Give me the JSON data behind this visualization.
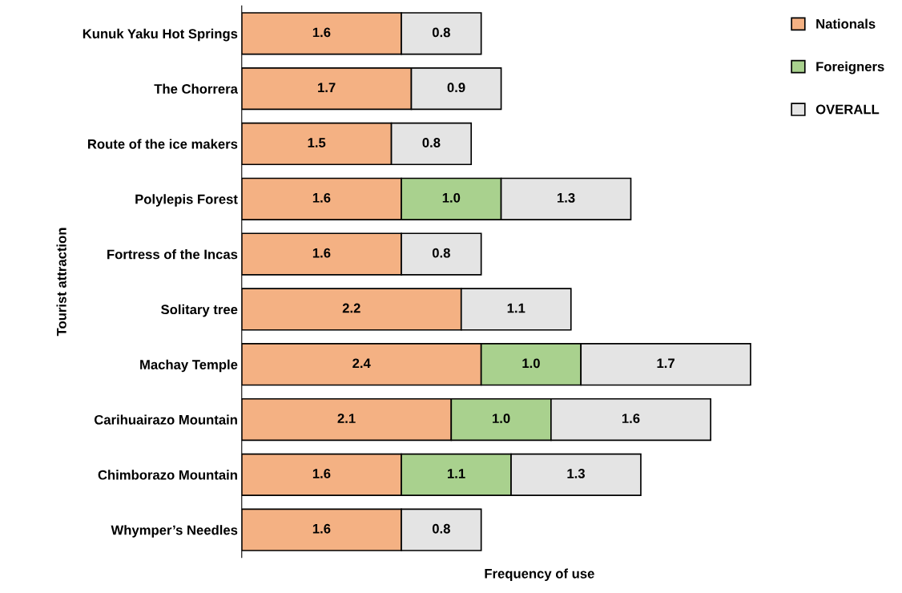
{
  "chart_data": {
    "type": "bar",
    "orientation": "horizontal",
    "stacked": true,
    "xlabel": "Frequency of use",
    "ylabel": "Tourist attraction",
    "categories": [
      "Kunuk Yaku Hot Springs",
      "The Chorrera",
      "Route of the ice makers",
      "Polylepis Forest",
      "Fortress of the Incas",
      "Solitary tree",
      "Machay Temple",
      "Carihuairazo Mountain",
      "Chimborazo Mountain",
      "Whymper’s Needles"
    ],
    "series": [
      {
        "name": "Nationals",
        "color": "#f4b183",
        "values": [
          1.6,
          1.7,
          1.5,
          1.6,
          1.6,
          2.2,
          2.4,
          2.1,
          1.6,
          1.6
        ],
        "value_labels": [
          "1.6",
          "1.7",
          "1.5",
          "1.6",
          "1.6",
          "2.2",
          "2.4",
          "2.1",
          "1.6",
          "1.6"
        ]
      },
      {
        "name": "Foreigners",
        "color": "#a9d18e",
        "values": [
          null,
          null,
          null,
          1.0,
          null,
          null,
          1.0,
          1.0,
          1.1,
          null
        ],
        "value_labels": [
          null,
          null,
          null,
          "1.0",
          null,
          null,
          "1.0",
          "1.0",
          "1.1",
          null
        ]
      },
      {
        "name": "OVERALL",
        "color": "#e4e4e4",
        "values": [
          0.8,
          0.9,
          0.8,
          1.3,
          0.8,
          1.1,
          1.7,
          1.6,
          1.3,
          0.8
        ],
        "value_labels": [
          "0.8",
          "0.9",
          "0.8",
          "1.3",
          "0.8",
          "1.1",
          "1.7",
          "1.6",
          "1.3",
          "0.8"
        ]
      }
    ],
    "legend": "top right",
    "grid": false,
    "tick_labels": "y"
  }
}
